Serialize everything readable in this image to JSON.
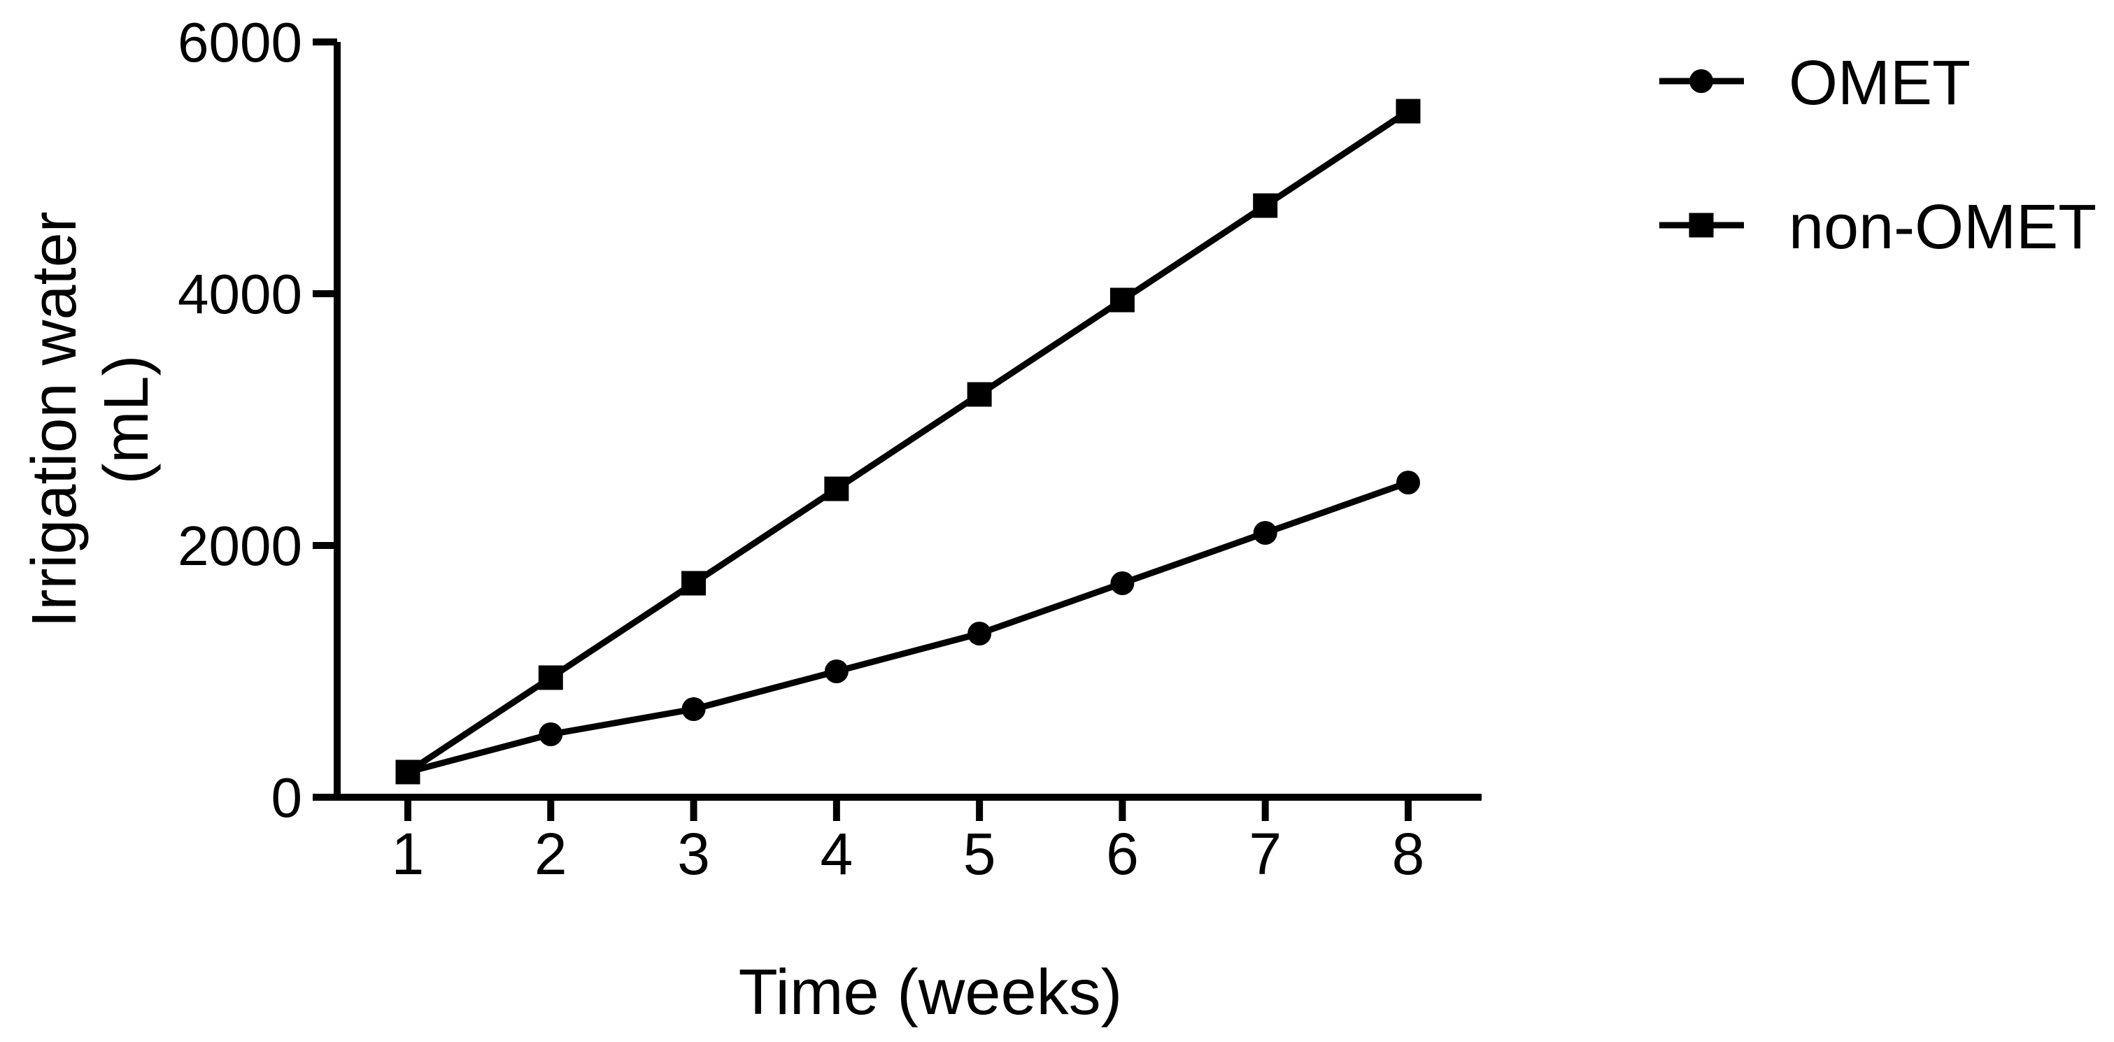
{
  "colors": {
    "ink": "#000000",
    "background": "#ffffff"
  },
  "chart_data": {
    "type": "line",
    "title": "",
    "xlabel": "Time (weeks)",
    "ylabel": "Irrigation water (mL)",
    "ylabel_lines": [
      "Irrigation water",
      "(mL)"
    ],
    "x": [
      1,
      2,
      3,
      4,
      5,
      6,
      7,
      8
    ],
    "xticklabels": [
      "1",
      "2",
      "3",
      "4",
      "5",
      "6",
      "7",
      "8"
    ],
    "xlim": [
      1,
      8
    ],
    "ylim": [
      0,
      6000
    ],
    "yticks": [
      0,
      2000,
      4000,
      6000
    ],
    "yticklabels": [
      "0",
      "2000",
      "4000",
      "6000"
    ],
    "grid": false,
    "legend_position": "right-top",
    "series": [
      {
        "name": "OMET",
        "marker": "circle",
        "color": "#000000",
        "values": [
          200,
          500,
          700,
          1000,
          1300,
          1700,
          2100,
          2500
        ]
      },
      {
        "name": "non-OMET",
        "marker": "square",
        "color": "#000000",
        "values": [
          200,
          950,
          1700,
          2450,
          3200,
          3950,
          4700,
          5450
        ]
      }
    ]
  }
}
